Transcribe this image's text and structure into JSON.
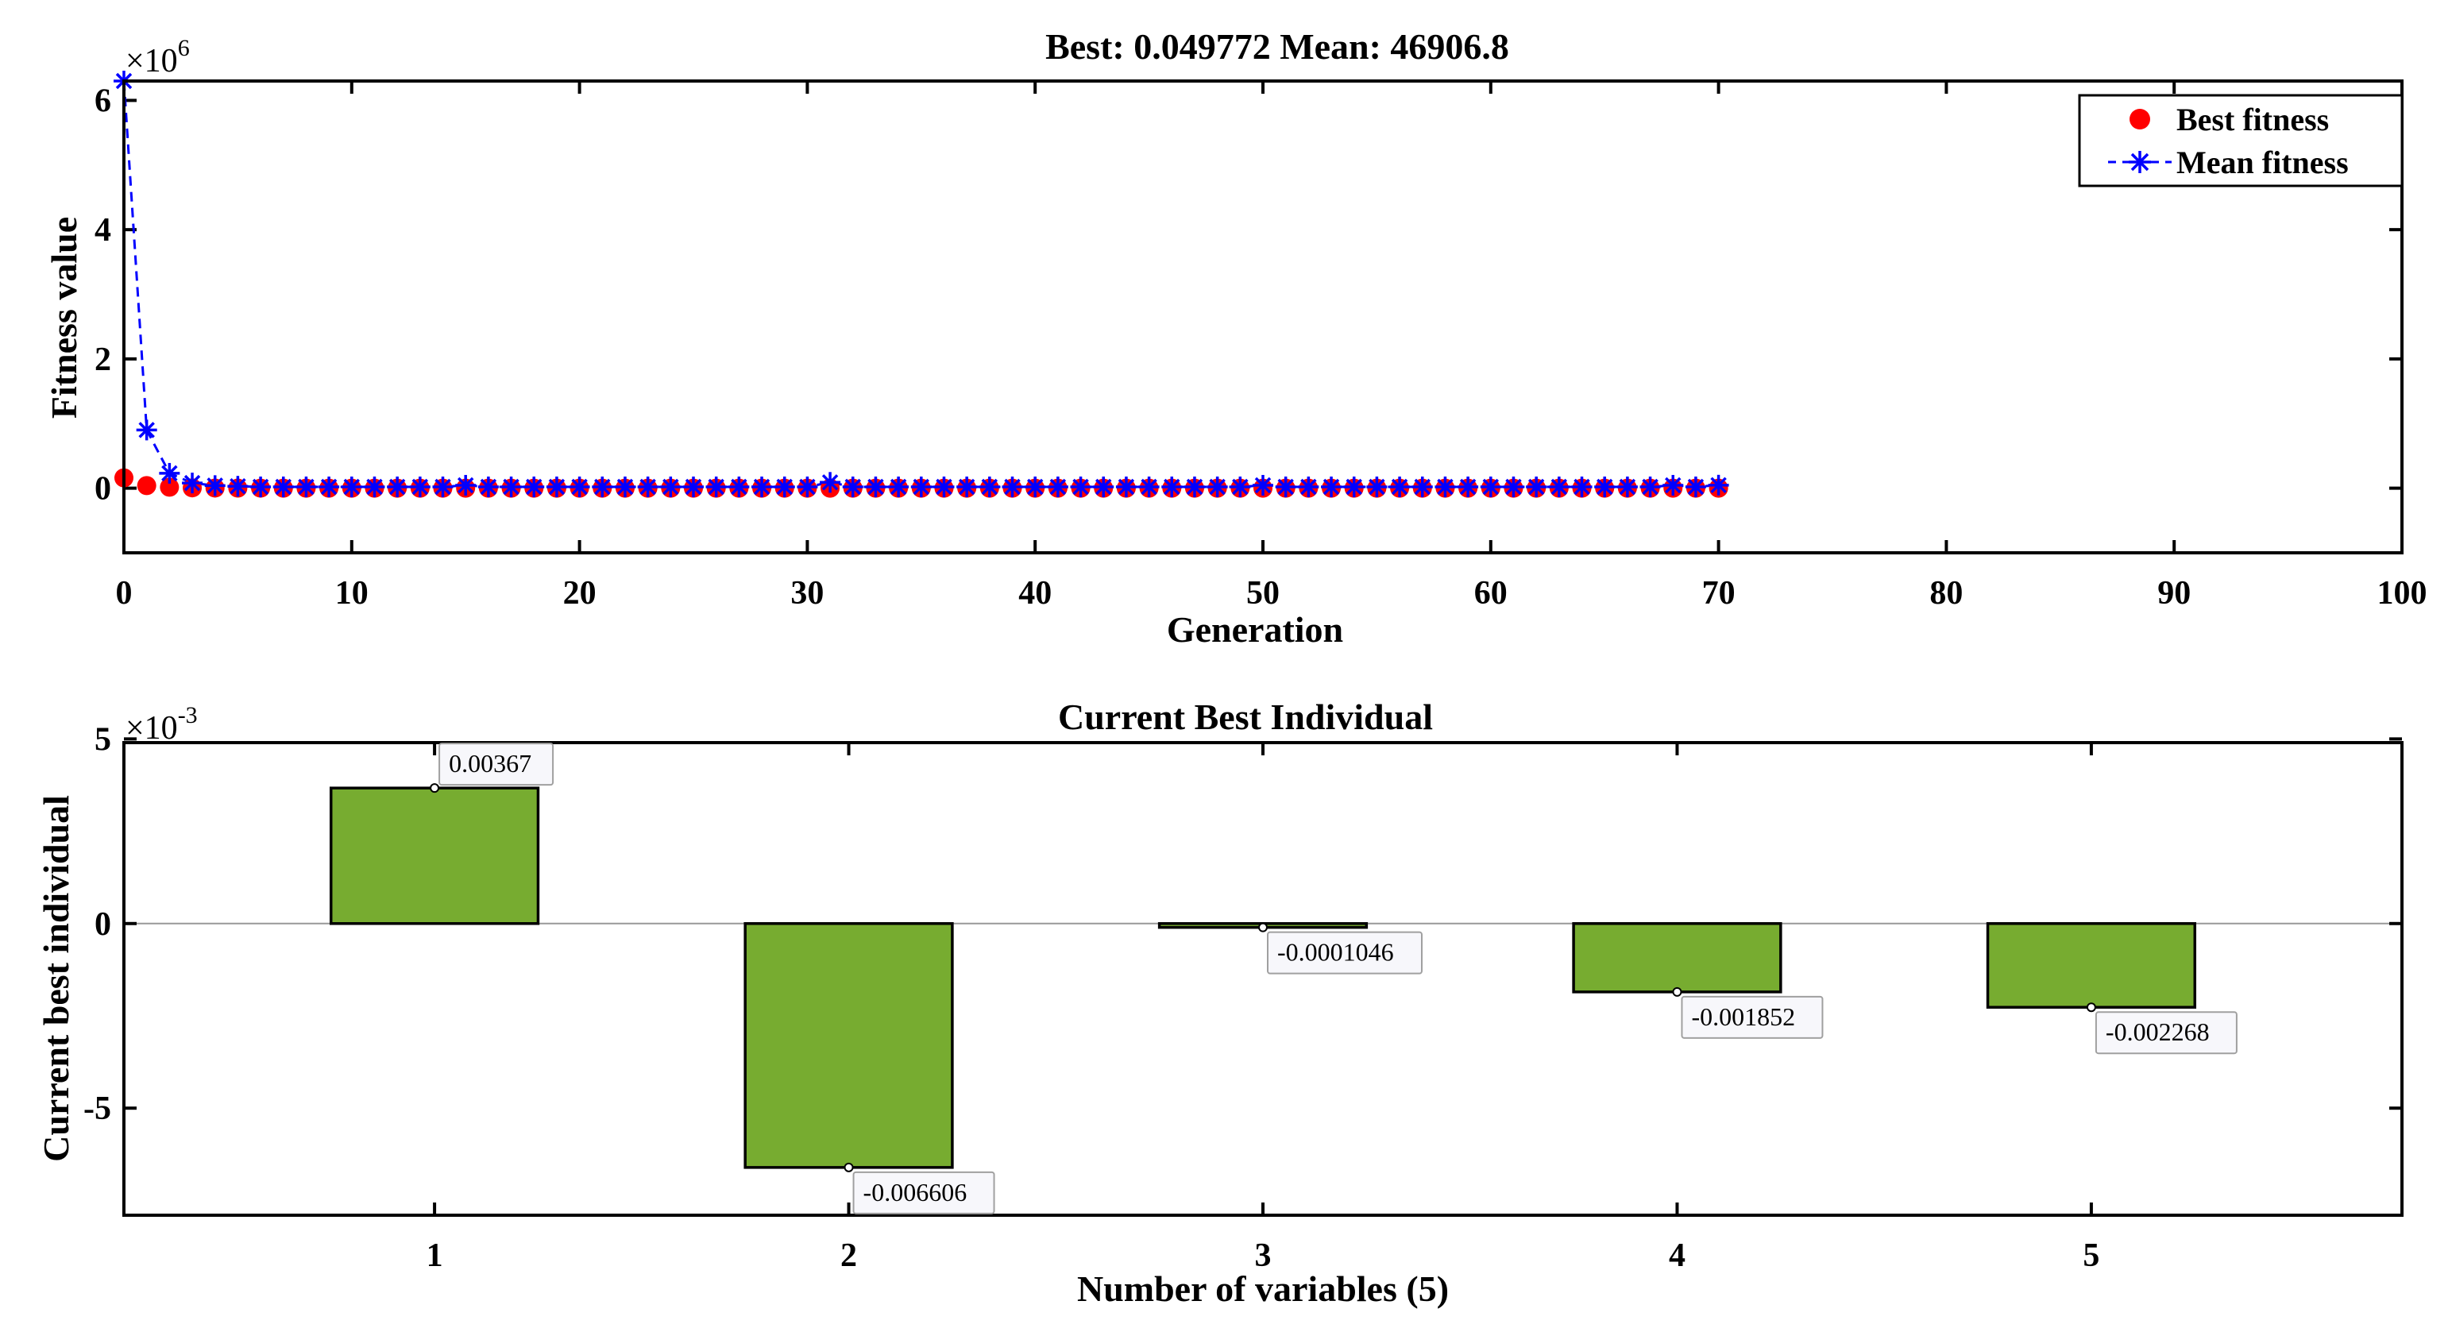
{
  "chart_data": [
    {
      "type": "line",
      "title": "Best: 0.049772 Mean: 46906.8",
      "xlabel": "Generation",
      "ylabel": "Fitness value",
      "y_exponent_label": "×10",
      "y_exponent_power": "6",
      "y_scale": 1000000,
      "xlim": [
        0,
        100
      ],
      "ylim": [
        -1000000,
        6300000
      ],
      "x_ticks": [
        0,
        10,
        20,
        30,
        40,
        50,
        60,
        70,
        80,
        90,
        100
      ],
      "y_ticks": [
        0,
        2000000,
        4000000,
        6000000
      ],
      "legend_position": "top-right",
      "grid": false,
      "series": [
        {
          "name": "Best fitness",
          "color": "#ff0000",
          "marker": "dot",
          "x": [
            0,
            1,
            2,
            3,
            4,
            5,
            6,
            7,
            8,
            9,
            10,
            11,
            12,
            13,
            14,
            15,
            16,
            17,
            18,
            19,
            20,
            21,
            22,
            23,
            24,
            25,
            26,
            27,
            28,
            29,
            30,
            31,
            32,
            33,
            34,
            35,
            36,
            37,
            38,
            39,
            40,
            41,
            42,
            43,
            44,
            45,
            46,
            47,
            48,
            49,
            50,
            51,
            52,
            53,
            54,
            55,
            56,
            57,
            58,
            59,
            60,
            61,
            62,
            63,
            64,
            65,
            66,
            67,
            68,
            69,
            70
          ],
          "y": [
            160000,
            40000,
            15000,
            5000,
            2000,
            1000,
            500,
            300,
            200,
            150,
            100,
            80,
            60,
            50,
            40,
            30,
            25,
            20,
            15,
            12,
            10,
            9,
            8,
            7,
            6,
            5,
            4.5,
            4,
            3.5,
            3,
            2.8,
            2.5,
            2.2,
            2,
            1.8,
            1.6,
            1.4,
            1.2,
            1.1,
            1,
            0.9,
            0.8,
            0.75,
            0.7,
            0.65,
            0.6,
            0.55,
            0.5,
            0.45,
            0.4,
            0.35,
            0.3,
            0.28,
            0.26,
            0.24,
            0.22,
            0.2,
            0.18,
            0.16,
            0.14,
            0.12,
            0.11,
            0.1,
            0.09,
            0.08,
            0.075,
            0.07,
            0.065,
            0.06,
            0.055,
            0.049772
          ]
        },
        {
          "name": "Mean fitness",
          "color": "#0000ff",
          "marker": "star",
          "line": "dashed",
          "x": [
            0,
            1,
            2,
            3,
            4,
            5,
            6,
            7,
            8,
            9,
            10,
            11,
            12,
            13,
            14,
            15,
            16,
            17,
            18,
            19,
            20,
            21,
            22,
            23,
            24,
            25,
            26,
            27,
            28,
            29,
            30,
            31,
            32,
            33,
            34,
            35,
            36,
            37,
            38,
            39,
            40,
            41,
            42,
            43,
            44,
            45,
            46,
            47,
            48,
            49,
            50,
            51,
            52,
            53,
            54,
            55,
            56,
            57,
            58,
            59,
            60,
            61,
            62,
            63,
            64,
            65,
            66,
            67,
            68,
            69,
            70
          ],
          "y": [
            6300000,
            900000,
            230000,
            80000,
            40000,
            30000,
            20000,
            20000,
            20000,
            20000,
            20000,
            20000,
            20000,
            20000,
            20000,
            45000,
            20000,
            20000,
            20000,
            20000,
            20000,
            20000,
            20000,
            20000,
            20000,
            20000,
            20000,
            20000,
            20000,
            20000,
            20000,
            90000,
            20000,
            20000,
            20000,
            20000,
            20000,
            20000,
            20000,
            20000,
            20000,
            20000,
            20000,
            20000,
            20000,
            20000,
            20000,
            20000,
            20000,
            20000,
            45000,
            20000,
            20000,
            20000,
            20000,
            20000,
            20000,
            20000,
            20000,
            20000,
            20000,
            20000,
            20000,
            20000,
            20000,
            20000,
            20000,
            20000,
            45000,
            20000,
            46906.8
          ]
        }
      ]
    },
    {
      "type": "bar",
      "title": "Current Best Individual",
      "xlabel": "Number of variables (5)",
      "ylabel": "Current best individual",
      "y_exponent_label": "×10",
      "y_exponent_power": "-3",
      "y_scale": 0.001,
      "categories": [
        "1",
        "2",
        "3",
        "4",
        "5"
      ],
      "values": [
        0.00367,
        -0.006606,
        -0.0001046,
        -0.001852,
        -0.002268
      ],
      "data_labels": [
        "0.00367",
        "-0.006606",
        "-0.0001046",
        "-0.001852",
        "-0.002268"
      ],
      "ylim": [
        -0.0079,
        0.0049
      ],
      "y_ticks": [
        -0.005,
        0,
        0.005
      ],
      "bar_color": "#77AC30",
      "grid": false
    }
  ]
}
